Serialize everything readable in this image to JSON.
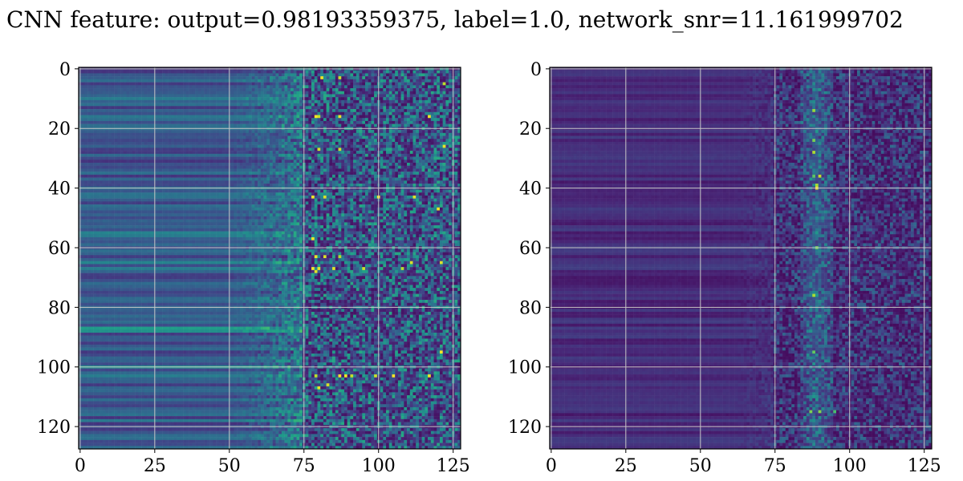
{
  "title": "CNN feature: output=0.98193359375, label=1.0, network_snr=11.161999702",
  "colors": {
    "colormap": "viridis",
    "grid": "#c8c8c8",
    "axes": "#000000",
    "background": "#ffffff"
  },
  "chart_data": [
    {
      "type": "heatmap",
      "panel": "left",
      "shape": [
        128,
        128
      ],
      "colormap": "viridis",
      "grid": true,
      "xlim": [
        -0.5,
        127.5
      ],
      "ylim": [
        127.5,
        -0.5
      ],
      "xticks": [
        0,
        25,
        50,
        75,
        100,
        125
      ],
      "yticks": [
        0,
        20,
        40,
        60,
        80,
        100,
        120
      ],
      "description_values": {
        "smooth_region_cols": [
          0,
          50
        ],
        "transition_cols": [
          50,
          75
        ],
        "noisy_region_cols": [
          75,
          127
        ],
        "bright_rows": [
          16,
          27,
          42,
          43,
          57,
          63,
          65,
          67,
          68,
          103
        ],
        "bright_row_cols_left": [
          55,
          87,
          100
        ]
      }
    },
    {
      "type": "heatmap",
      "panel": "right",
      "shape": [
        128,
        128
      ],
      "colormap": "viridis",
      "grid": true,
      "xlim": [
        -0.5,
        127.5
      ],
      "ylim": [
        127.5,
        -0.5
      ],
      "xticks": [
        0,
        25,
        50,
        75,
        100,
        125
      ],
      "yticks": [
        0,
        20,
        40,
        60,
        80,
        100,
        120
      ],
      "description_values": {
        "smooth_region_cols": [
          0,
          60
        ],
        "noisy_region_cols": [
          75,
          127
        ],
        "hot_spot": [
          89,
          40
        ],
        "bright_rows": [
          24,
          36,
          40,
          76,
          95,
          115
        ]
      }
    }
  ]
}
